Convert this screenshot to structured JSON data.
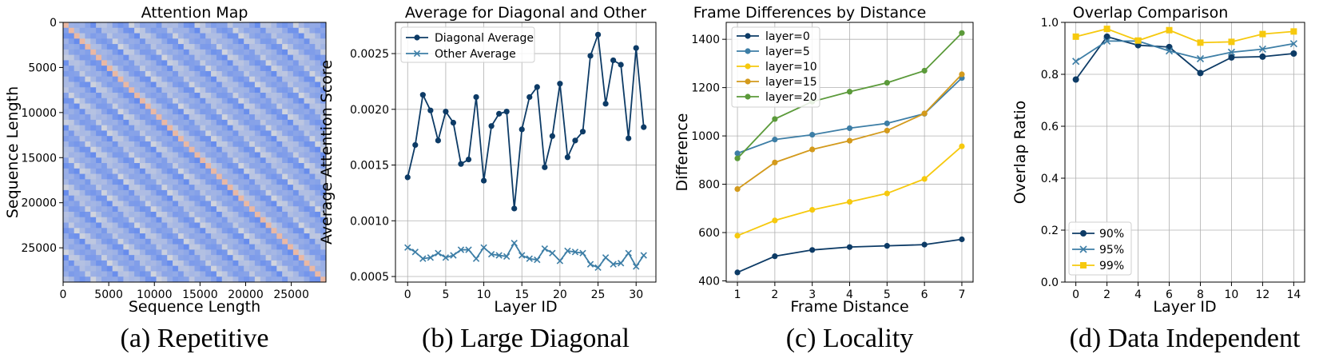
{
  "colors": {
    "navy": "#0d3b66",
    "steel": "#3d7ea6",
    "gold": "#f6c90e",
    "amber": "#d39a1c",
    "green": "#5b9a3a",
    "grid": "#b0b0b0",
    "heat_low": "#4f7cf0",
    "heat_mid": "#dcdcdc",
    "heat_high": "#f0a88a"
  },
  "chart_data": [
    {
      "id": "a",
      "type": "heatmap",
      "title": "Attention Map",
      "xlabel": "Sequence Length",
      "ylabel": "Sequence Length",
      "xlim": [
        0,
        28800
      ],
      "ylim": [
        0,
        28800
      ],
      "xticks": [
        0,
        5000,
        10000,
        15000,
        20000,
        25000
      ],
      "yticks": [
        0,
        5000,
        10000,
        15000,
        20000,
        25000
      ],
      "frame_length": 3600,
      "caption": "(a) Repetitive"
    },
    {
      "id": "b",
      "type": "line",
      "title": "Average for Diagonal and Other",
      "xlabel": "Layer ID",
      "ylabel": "Average Attention Score",
      "xlim": [
        -1.6,
        32.6
      ],
      "ylim": [
        0.00045,
        0.00278
      ],
      "xticks": [
        0,
        5,
        10,
        15,
        20,
        25,
        30
      ],
      "yticks": [
        0.0005,
        0.001,
        0.0015,
        0.002,
        0.0025
      ],
      "ytick_labels": [
        "0.0005",
        "0.0010",
        "0.0015",
        "0.0020",
        "0.0025"
      ],
      "legend_loc": "upper-left",
      "x": [
        0,
        1,
        2,
        3,
        4,
        5,
        6,
        7,
        8,
        9,
        10,
        11,
        12,
        13,
        14,
        15,
        16,
        17,
        18,
        19,
        20,
        21,
        22,
        23,
        24,
        25,
        26,
        27,
        28,
        29,
        30,
        31
      ],
      "series": [
        {
          "name": "Diagonal Average",
          "marker": "circle",
          "color": "navy",
          "values": [
            0.00139,
            0.00168,
            0.00213,
            0.00199,
            0.00172,
            0.00198,
            0.00188,
            0.00151,
            0.00155,
            0.00211,
            0.00136,
            0.00185,
            0.00196,
            0.00198,
            0.00111,
            0.00182,
            0.00211,
            0.0022,
            0.00148,
            0.00176,
            0.00223,
            0.00157,
            0.00172,
            0.0018,
            0.00248,
            0.00267,
            0.00205,
            0.00244,
            0.0024,
            0.00174,
            0.00255,
            0.00184
          ]
        },
        {
          "name": "Other Average",
          "marker": "x",
          "color": "steel",
          "values": [
            0.00076,
            0.00072,
            0.00066,
            0.00067,
            0.00071,
            0.00067,
            0.00069,
            0.00074,
            0.00074,
            0.00066,
            0.00076,
            0.0007,
            0.00069,
            0.00068,
            0.0008,
            0.00069,
            0.00066,
            0.00065,
            0.00075,
            0.00071,
            0.00064,
            0.00073,
            0.00072,
            0.00071,
            0.00061,
            0.00058,
            0.00067,
            0.00061,
            0.00062,
            0.00071,
            0.00059,
            0.00069
          ]
        }
      ],
      "caption": "(b) Large Diagonal"
    },
    {
      "id": "c",
      "type": "line",
      "title": "Frame Differences by Distance",
      "xlabel": "Frame Distance",
      "ylabel": "Difference",
      "xlim": [
        0.7,
        7.3
      ],
      "ylim": [
        395,
        1470
      ],
      "xticks": [
        1,
        2,
        3,
        4,
        5,
        6,
        7
      ],
      "yticks": [
        400,
        600,
        800,
        1000,
        1200,
        1400
      ],
      "legend_loc": "upper-left",
      "x": [
        1,
        2,
        3,
        4,
        5,
        6,
        7
      ],
      "series": [
        {
          "name": "layer=0",
          "marker": "circle",
          "color": "navy",
          "values": [
            435,
            502,
            528,
            540,
            545,
            550,
            572
          ]
        },
        {
          "name": "layer=5",
          "marker": "circle",
          "color": "steel",
          "values": [
            928,
            985,
            1005,
            1032,
            1052,
            1092,
            1240
          ]
        },
        {
          "name": "layer=10",
          "marker": "circle",
          "color": "gold",
          "values": [
            587,
            650,
            694,
            727,
            762,
            822,
            957
          ]
        },
        {
          "name": "layer=15",
          "marker": "circle",
          "color": "amber",
          "values": [
            780,
            890,
            944,
            980,
            1022,
            1093,
            1255
          ]
        },
        {
          "name": "layer=20",
          "marker": "circle",
          "color": "green",
          "values": [
            907,
            1070,
            1142,
            1183,
            1220,
            1270,
            1426
          ]
        }
      ],
      "caption": "(c) Locality"
    },
    {
      "id": "d",
      "type": "line",
      "title": "Overlap Comparison",
      "xlabel": "Layer ID",
      "ylabel": "Overlap Ratio",
      "xlim": [
        -0.7,
        14.7
      ],
      "ylim": [
        0.0,
        1.0
      ],
      "xticks": [
        0,
        2,
        4,
        6,
        8,
        10,
        12,
        14
      ],
      "yticks": [
        0.0,
        0.2,
        0.4,
        0.6,
        0.8,
        1.0
      ],
      "ytick_labels": [
        "0.0",
        "0.2",
        "0.4",
        "0.6",
        "0.8",
        "1.0"
      ],
      "legend_loc": "lower-left",
      "x": [
        0,
        2,
        4,
        6,
        8,
        10,
        12,
        14
      ],
      "series": [
        {
          "name": "90%",
          "marker": "circle",
          "color": "navy",
          "values": [
            0.78,
            0.945,
            0.912,
            0.905,
            0.805,
            0.865,
            0.868,
            0.88
          ]
        },
        {
          "name": "95%",
          "marker": "x",
          "color": "steel",
          "values": [
            0.85,
            0.928,
            0.928,
            0.89,
            0.86,
            0.885,
            0.897,
            0.918
          ]
        },
        {
          "name": "99%",
          "marker": "square",
          "color": "gold",
          "values": [
            0.945,
            0.975,
            0.93,
            0.97,
            0.922,
            0.925,
            0.955,
            0.965
          ]
        }
      ],
      "caption": "(d) Data Independent"
    }
  ]
}
